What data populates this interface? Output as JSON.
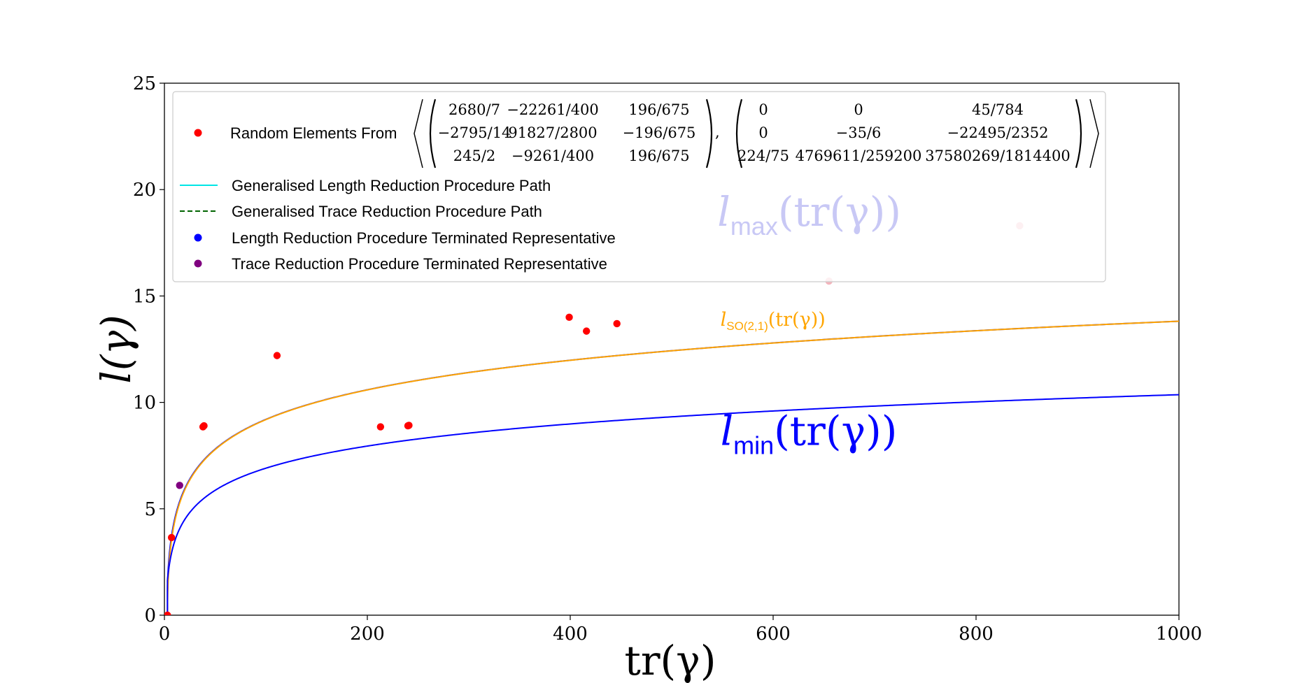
{
  "chart_data": {
    "type": "scatter",
    "xlabel": "tr(γ)",
    "ylabel": "l(γ)",
    "xlim": [
      0,
      1000
    ],
    "ylim": [
      0,
      25
    ],
    "xticks": [
      0,
      200,
      400,
      600,
      800,
      1000
    ],
    "yticks": [
      0,
      5,
      10,
      15,
      20,
      25
    ],
    "grid": false,
    "legend_position": "top",
    "legend": {
      "random_label": "Random Elements From",
      "matrix_a": [
        [
          "2680/7",
          "−22261/400",
          "196/675"
        ],
        [
          "−2795/14",
          "91827/2800",
          "−196/675"
        ],
        [
          "245/2",
          "−9261/400",
          "196/675"
        ]
      ],
      "matrix_b": [
        [
          "0",
          "0",
          "45/784"
        ],
        [
          "0",
          "−35/6",
          "−22495/2352"
        ],
        [
          "224/75",
          "4769611/259200",
          "37580269/1814400"
        ]
      ],
      "entries": [
        {
          "label": "Generalised Length Reduction Procedure Path",
          "color": "#00e5e5",
          "style": "solid-line"
        },
        {
          "label": "Generalised Trace Reduction Procedure Path",
          "color": "#006400",
          "style": "dashed-line"
        },
        {
          "label": "Length Reduction Procedure Terminated Representative",
          "color": "#0000ff",
          "style": "dot"
        },
        {
          "label": "Trace Reduction Procedure Terminated Representative",
          "color": "#800080",
          "style": "dot"
        }
      ]
    },
    "curves": [
      {
        "name": "l_max",
        "label_main": "l",
        "label_sub": "max",
        "label_arg": "(tr(γ))",
        "color": "#0000ff",
        "label_color": "#c8c8f5",
        "label_x": 545,
        "label_y": 18.3
      },
      {
        "name": "l_SO(2,1)",
        "label_main": "l",
        "label_sub": "SO(2,1)",
        "label_arg": "(tr(γ))",
        "color": "#ffa500",
        "label_color": "#ffa500",
        "label_x": 548,
        "label_y": 13.6
      },
      {
        "name": "l_min",
        "label_main": "l",
        "label_sub": "min",
        "label_arg": "(tr(γ))",
        "color": "#0000ff",
        "label_color": "#0000ff",
        "label_x": 548,
        "label_y": 8.0
      }
    ],
    "random_points": [
      {
        "x": 3,
        "y": 0.0
      },
      {
        "x": 7,
        "y": 3.65
      },
      {
        "x": 38,
        "y": 8.85
      },
      {
        "x": 39,
        "y": 8.9
      },
      {
        "x": 111,
        "y": 12.2
      },
      {
        "x": 213,
        "y": 8.85
      },
      {
        "x": 240,
        "y": 8.9
      },
      {
        "x": 241,
        "y": 8.92
      },
      {
        "x": 399,
        "y": 14.0
      },
      {
        "x": 416,
        "y": 13.35
      },
      {
        "x": 446,
        "y": 13.7
      },
      {
        "x": 655,
        "y": 15.7
      },
      {
        "x": 843,
        "y": 18.3
      }
    ],
    "point_colors": {
      "random": "#ff0000",
      "faded_random": "#f4b4bc",
      "trace_terminated": "#800080"
    },
    "trace_points": [
      {
        "x": 15,
        "y": 6.1
      }
    ]
  }
}
